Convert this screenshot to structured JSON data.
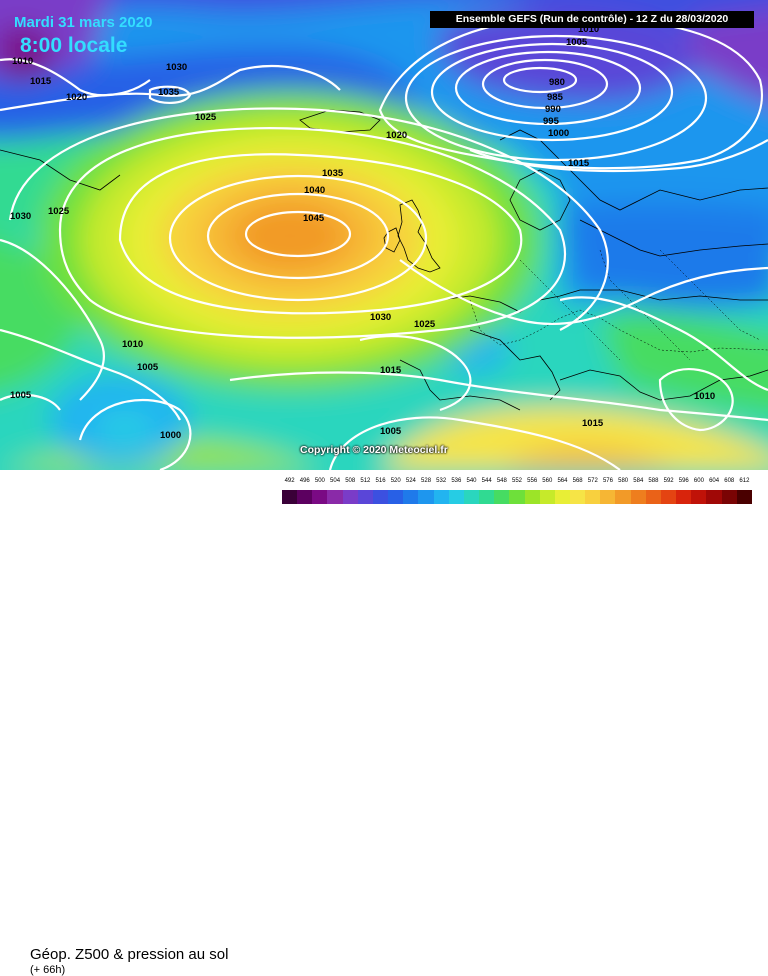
{
  "title_date": "Mardi 31 mars 2020",
  "title_time": "8:00 locale",
  "model_info": "Ensemble GEFS  (Run de contrôle)  -  12 Z du 28/03/2020",
  "copyright": "Copyright © 2020 Meteociel.fr",
  "parameter": "Géop. Z500 & pression au sol",
  "lead_time": "(+ 66h)",
  "pressure_labels": [
    {
      "text": "1010"
    },
    {
      "text": "1015"
    },
    {
      "text": "1020"
    },
    {
      "text": "1030"
    },
    {
      "text": "1035"
    },
    {
      "text": "1025"
    },
    {
      "text": "1010"
    },
    {
      "text": "1005"
    },
    {
      "text": "980"
    },
    {
      "text": "985"
    },
    {
      "text": "990"
    },
    {
      "text": "995"
    },
    {
      "text": "1000"
    },
    {
      "text": "1020"
    },
    {
      "text": "1015"
    },
    {
      "text": "1035"
    },
    {
      "text": "1040"
    },
    {
      "text": "1045"
    },
    {
      "text": "1030"
    },
    {
      "text": "1025"
    },
    {
      "text": "1030"
    },
    {
      "text": "1025"
    },
    {
      "text": "1015"
    },
    {
      "text": "1010"
    },
    {
      "text": "1005"
    },
    {
      "text": "1005"
    },
    {
      "text": "1000"
    },
    {
      "text": "1005"
    },
    {
      "text": "1015"
    },
    {
      "text": "1010"
    }
  ],
  "colorscale": {
    "labels": [
      "492",
      "496",
      "500",
      "504",
      "508",
      "512",
      "516",
      "520",
      "524",
      "528",
      "532",
      "536",
      "540",
      "544",
      "548",
      "552",
      "556",
      "560",
      "564",
      "568",
      "572",
      "576",
      "580",
      "584",
      "588",
      "592",
      "596",
      "600",
      "604",
      "608",
      "612"
    ],
    "colors": [
      "#3a0038",
      "#5c0060",
      "#7a0a84",
      "#8a2aa8",
      "#7a3cc8",
      "#5a46d8",
      "#3c50e0",
      "#2860e6",
      "#1f7aea",
      "#1e96ee",
      "#22b4f0",
      "#26cce4",
      "#2ad6be",
      "#30da92",
      "#46dc62",
      "#6ee03a",
      "#9ce428",
      "#c6ea2a",
      "#e8ee36",
      "#f6e446",
      "#f8d03e",
      "#f6b634",
      "#f29a28",
      "#ee7e1e",
      "#ea6218",
      "#e44412",
      "#d8240c",
      "#c01208",
      "#a00806",
      "#7a0404",
      "#4a0000"
    ]
  }
}
